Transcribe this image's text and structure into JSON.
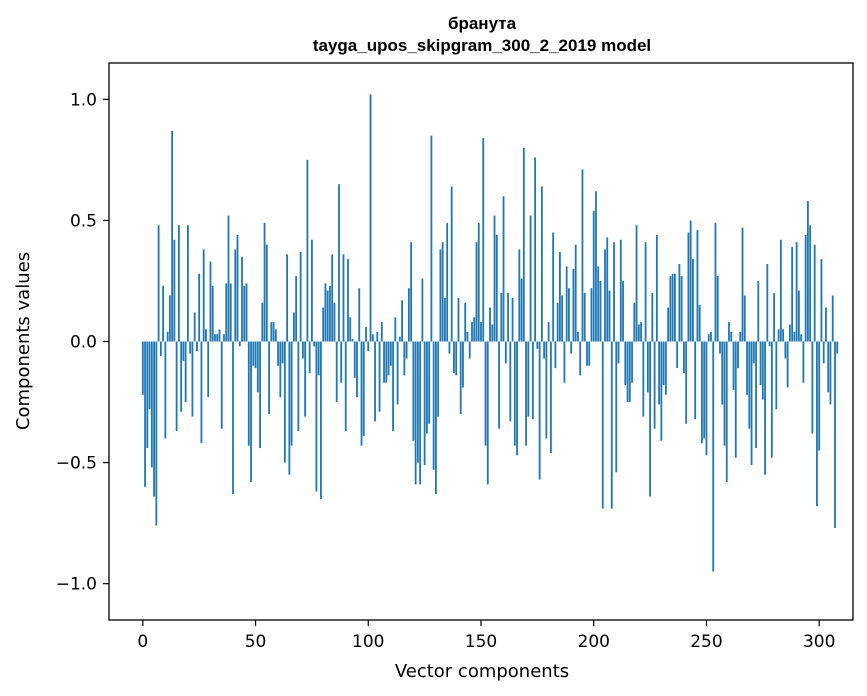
{
  "chart_data": {
    "type": "bar",
    "title": "бранута",
    "subtitle": "tayga_upos_skipgram_300_2_2019 model",
    "xlabel": "Vector components",
    "ylabel": "Components values",
    "xlim": [
      -15,
      315
    ],
    "ylim": [
      -1.15,
      1.15
    ],
    "xticks": [
      0,
      50,
      100,
      150,
      200,
      250,
      300
    ],
    "yticks": [
      1.0,
      0.5,
      0.0,
      -0.5,
      -1.0
    ],
    "ytick_labels": [
      "1.0",
      "0.5",
      "0.0",
      "−0.5",
      "−1.0"
    ],
    "bar_color": "#1f77b4",
    "values": [
      -0.22,
      -0.6,
      -0.44,
      -0.28,
      -0.52,
      -0.64,
      -0.76,
      0.48,
      -0.06,
      0.23,
      -0.4,
      0.04,
      0.19,
      0.87,
      0.42,
      -0.37,
      0.48,
      -0.29,
      -0.08,
      -0.25,
      0.48,
      -0.05,
      -0.31,
      0.12,
      -0.04,
      0.28,
      -0.42,
      0.38,
      0.05,
      -0.23,
      0.33,
      0.23,
      0.03,
      0.03,
      0.05,
      -0.36,
      0.03,
      0.24,
      0.52,
      0.24,
      -0.63,
      0.38,
      0.44,
      -0.02,
      0.35,
      0.23,
      0.24,
      -0.43,
      -0.58,
      -0.1,
      -0.11,
      -0.21,
      -0.44,
      0.16,
      0.49,
      0.4,
      -0.3,
      0.08,
      0.08,
      0.05,
      -0.1,
      -0.23,
      -0.09,
      -0.5,
      0.36,
      -0.55,
      -0.43,
      0.12,
      0.27,
      -0.37,
      0.37,
      -0.07,
      -0.31,
      0.75,
      -0.13,
      0.42,
      -0.02,
      -0.62,
      -0.14,
      -0.65,
      0.14,
      0.24,
      0.21,
      0.23,
      0.36,
      0.16,
      -0.25,
      0.65,
      -0.17,
      0.36,
      -0.37,
      0.34,
      0.1,
      0.01,
      -0.15,
      -0.23,
      0.22,
      -0.43,
      -0.39,
      0.06,
      -0.04,
      1.02,
      0.03,
      -0.33,
      0.04,
      -0.29,
      0.08,
      -0.17,
      -0.17,
      -0.14,
      -0.1,
      -0.37,
      0.1,
      -0.26,
      0.02,
      0.17,
      -0.14,
      -0.07,
      0.22,
      0.41,
      -0.41,
      -0.59,
      -0.5,
      -0.59,
      0.26,
      -0.51,
      -0.38,
      -0.34,
      0.85,
      -0.53,
      -0.63,
      -0.31,
      0.38,
      0.41,
      0.18,
      0.49,
      -0.05,
      0.64,
      -0.13,
      -0.14,
      0.18,
      -0.3,
      -0.19,
      0.16,
      0.04,
      -0.07,
      0.08,
      0.1,
      0.41,
      0.49,
      0.08,
      0.84,
      -0.43,
      -0.59,
      0.14,
      0.07,
      0.52,
      0.44,
      -0.36,
      0.2,
      0.6,
      -0.09,
      0.2,
      -0.33,
      0.18,
      -0.43,
      -0.47,
      0.38,
      0.26,
      0.8,
      -0.43,
      -0.31,
      0.52,
      -0.32,
      0.76,
      -0.03,
      -0.57,
      0.64,
      -0.07,
      -0.4,
      0.08,
      -0.46,
      0.45,
      -0.11,
      0.16,
      0.37,
      0.19,
      -0.17,
      0.31,
      0.22,
      -0.05,
      0.3,
      0.4,
      0.04,
      -0.14,
      0.71,
      0.2,
      -0.1,
      -0.1,
      0.22,
      0.54,
      0.62,
      0.31,
      0.25,
      -0.69,
      0.38,
      0.43,
      0.21,
      -0.69,
      0.41,
      -0.54,
      -0.09,
      0.42,
      0.25,
      -0.18,
      -0.25,
      -0.25,
      -0.17,
      0.16,
      0.48,
      0.07,
      0.08,
      -0.31,
      0.41,
      -0.21,
      -0.64,
      0.2,
      -0.36,
      0.44,
      -0.26,
      -0.41,
      -0.18,
      -0.22,
      0.14,
      0.27,
      0.28,
      0.28,
      -0.11,
      0.32,
      0.27,
      -0.13,
      -0.34,
      0.45,
      0.5,
      0.34,
      -0.32,
      0.46,
      0.15,
      -0.42,
      -0.4,
      -0.47,
      0.03,
      0.04,
      -0.95,
      0.49,
      0.27,
      -0.05,
      -0.26,
      -0.43,
      -0.58,
      0.08,
      0.04,
      -0.2,
      -0.48,
      -0.11,
      0.04,
      0.47,
      0.19,
      -0.22,
      -0.36,
      -0.51,
      -0.09,
      -0.44,
      0.25,
      -0.18,
      -0.24,
      -0.55,
      0.32,
      -0.02,
      -0.48,
      0.2,
      -0.28,
      0.05,
      0.42,
      0.05,
      -0.07,
      -0.19,
      0.07,
      0.39,
      0.04,
      0.41,
      0.21,
      0.03,
      -0.17,
      0.44,
      0.58,
      0.48,
      -0.38,
      0.4,
      -0.68,
      -0.45,
      0.34,
      -0.09,
      0.14,
      -0.21,
      -0.26,
      0.19,
      -0.77,
      -0.05
    ]
  }
}
